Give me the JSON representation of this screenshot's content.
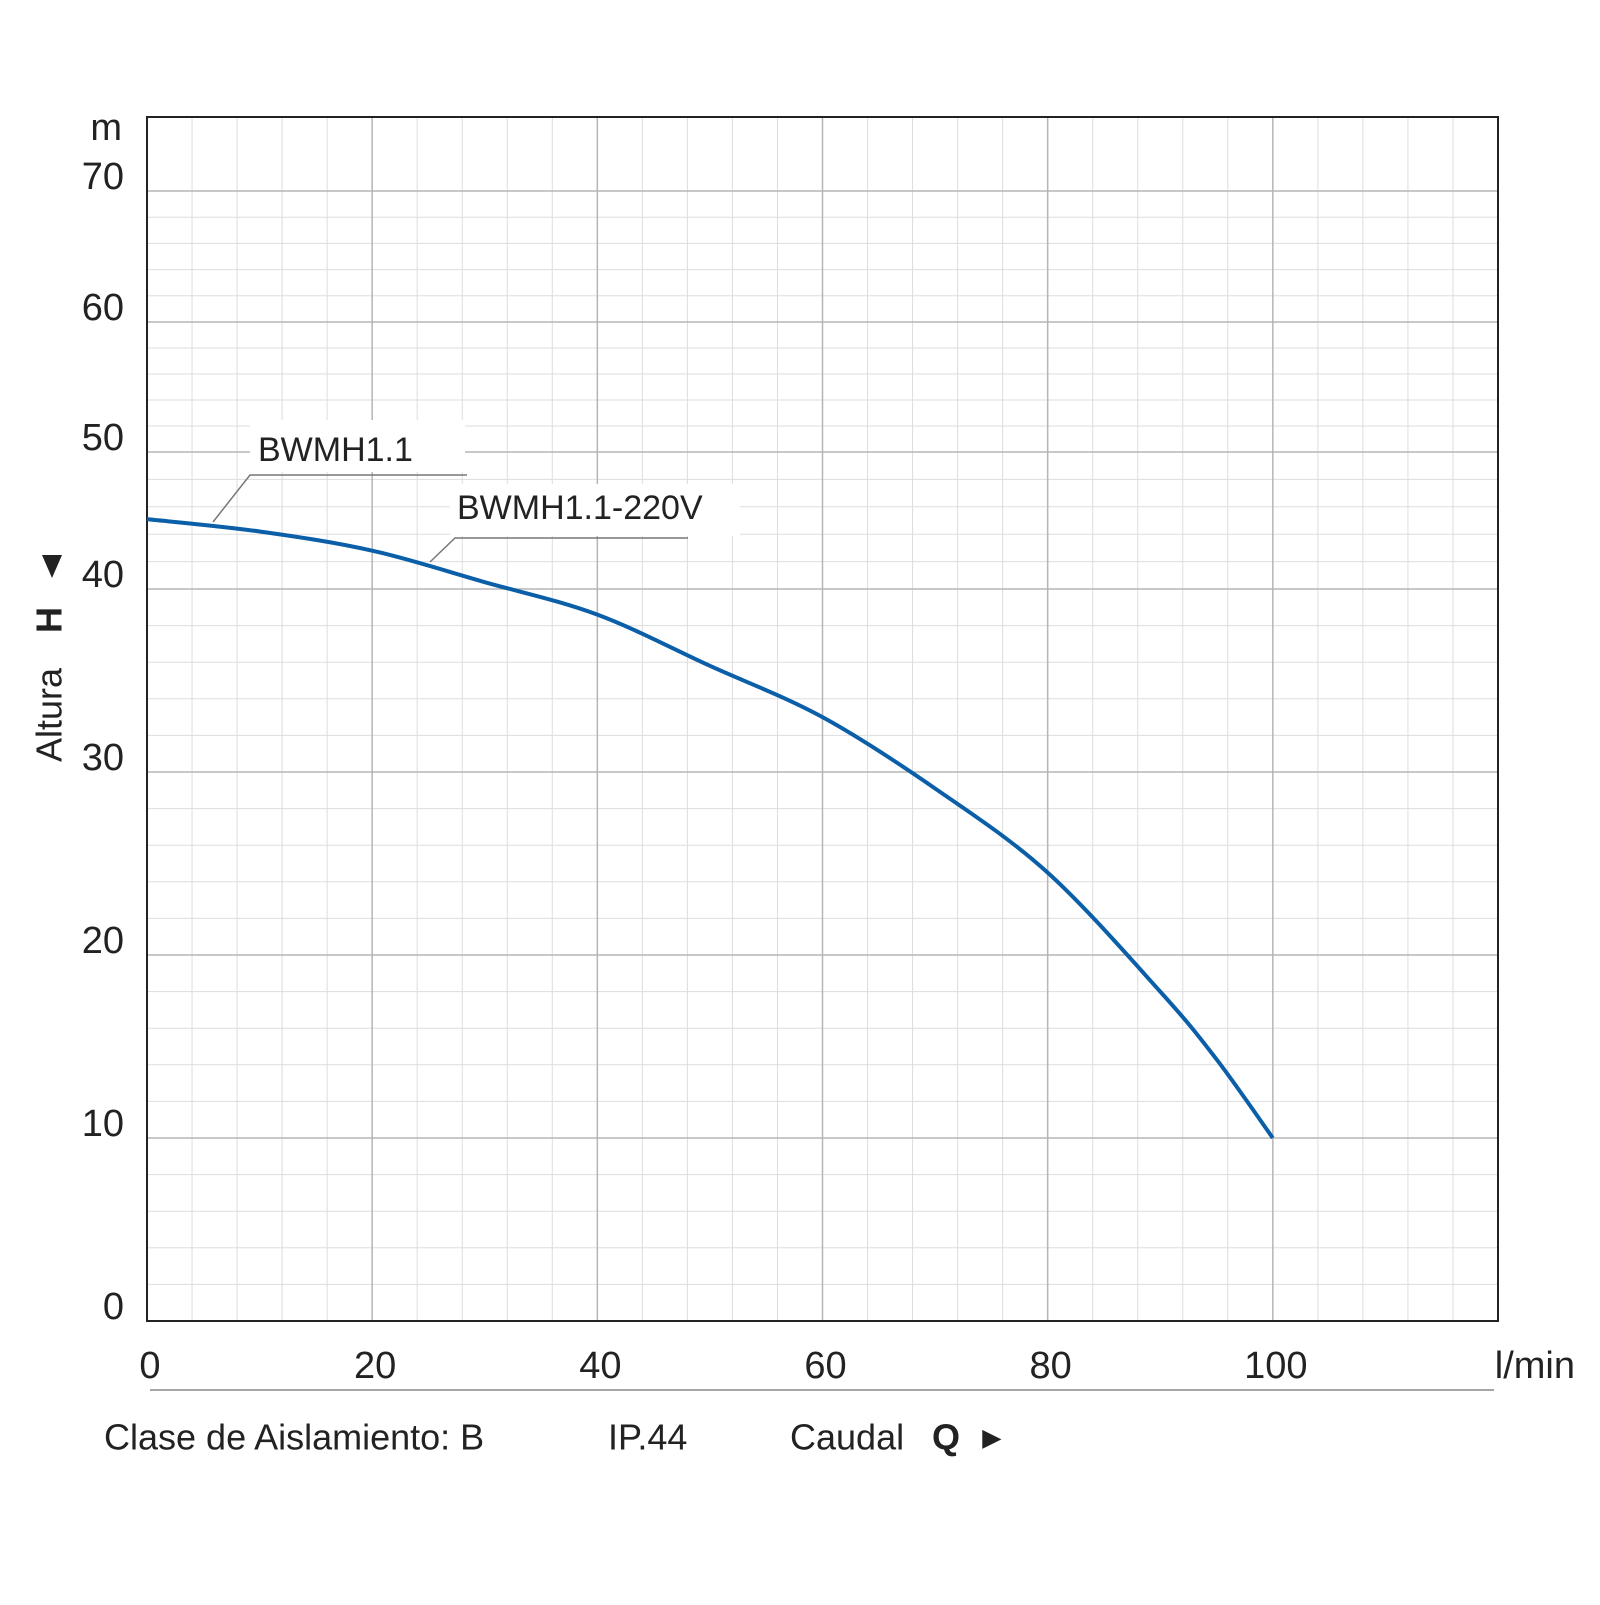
{
  "chart_data": {
    "type": "line",
    "x_unit": "l/min",
    "y_unit": "m",
    "y_label": "Altura",
    "y_symbol": "H",
    "x_label": "Caudal",
    "x_symbol": "Q",
    "x_arrow": "►",
    "footer": [
      "Clase de Aislamiento: B",
      "IP.44"
    ],
    "annotations": [
      "BWMH1.1",
      "BWMH1.1-220V"
    ],
    "x": [
      0,
      10,
      20,
      30,
      40,
      50,
      60,
      70,
      80,
      90,
      95,
      100
    ],
    "series": [
      {
        "color": "#0a5fa8",
        "values": [
          45.1,
          44.2,
          42.8,
          40.5,
          38.6,
          35.8,
          33.0,
          29.1,
          24.5,
          18.0,
          14.3,
          10
        ]
      }
    ],
    "xlim": [
      0,
      120
    ],
    "xticks": [
      0,
      20,
      40,
      60,
      80,
      100
    ],
    "ylim": [
      0,
      75.5
    ],
    "yticks": [
      0,
      10,
      20,
      30,
      40,
      50,
      60,
      70
    ],
    "grid": true
  }
}
